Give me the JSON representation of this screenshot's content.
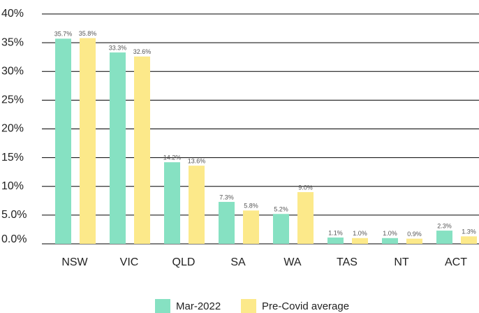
{
  "chart_data": {
    "type": "bar",
    "categories": [
      "NSW",
      "VIC",
      "QLD",
      "SA",
      "WA",
      "TAS",
      "NT",
      "ACT"
    ],
    "series": [
      {
        "name": "Mar-2022",
        "color": "#86e1c2",
        "values": [
          35.7,
          33.3,
          14.2,
          7.3,
          5.2,
          1.1,
          1.0,
          2.3
        ],
        "value_labels": [
          "35.7%",
          "33.3%",
          "14.2%",
          "7.3%",
          "5.2%",
          "1.1%",
          "1.0%",
          "2.3%"
        ]
      },
      {
        "name": "Pre-Covid average",
        "color": "#fce98a",
        "values": [
          35.8,
          32.6,
          13.6,
          5.8,
          9.0,
          1.0,
          0.9,
          1.3
        ],
        "value_labels": [
          "35.8%",
          "32.6%",
          "13.6%",
          "5.8%",
          "9.0%",
          "1.0%",
          "0.9%",
          "1.3%"
        ]
      }
    ],
    "ylim": [
      0,
      40
    ],
    "yticks": [
      {
        "value": 0,
        "label": "0.0%"
      },
      {
        "value": 5,
        "label": "5.0%"
      },
      {
        "value": 10,
        "label": "10%"
      },
      {
        "value": 15,
        "label": "15%"
      },
      {
        "value": 20,
        "label": "20%"
      },
      {
        "value": 25,
        "label": "25%"
      },
      {
        "value": 30,
        "label": "30%"
      },
      {
        "value": 35,
        "label": "35%"
      },
      {
        "value": 40,
        "label": "40%"
      }
    ],
    "grid": true,
    "legend": "bottom"
  }
}
